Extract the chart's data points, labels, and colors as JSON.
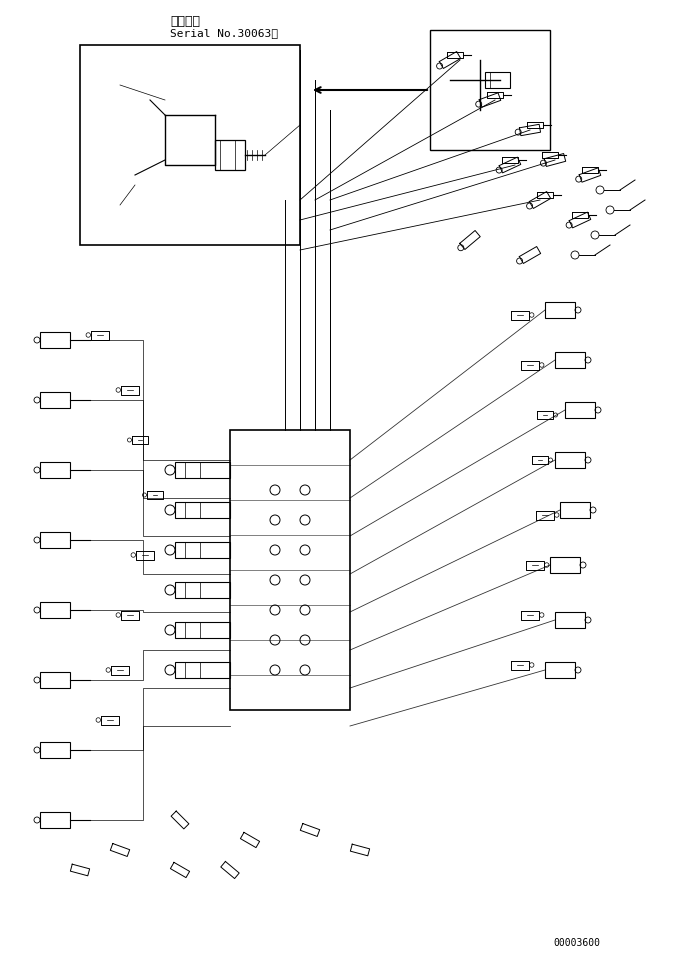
{
  "title_line1": "適用号機",
  "title_line2": "Serial No.30063～",
  "part_number": "00003600",
  "bg_color": "#ffffff",
  "line_color": "#000000",
  "fig_width": 6.73,
  "fig_height": 9.6,
  "dpi": 100
}
